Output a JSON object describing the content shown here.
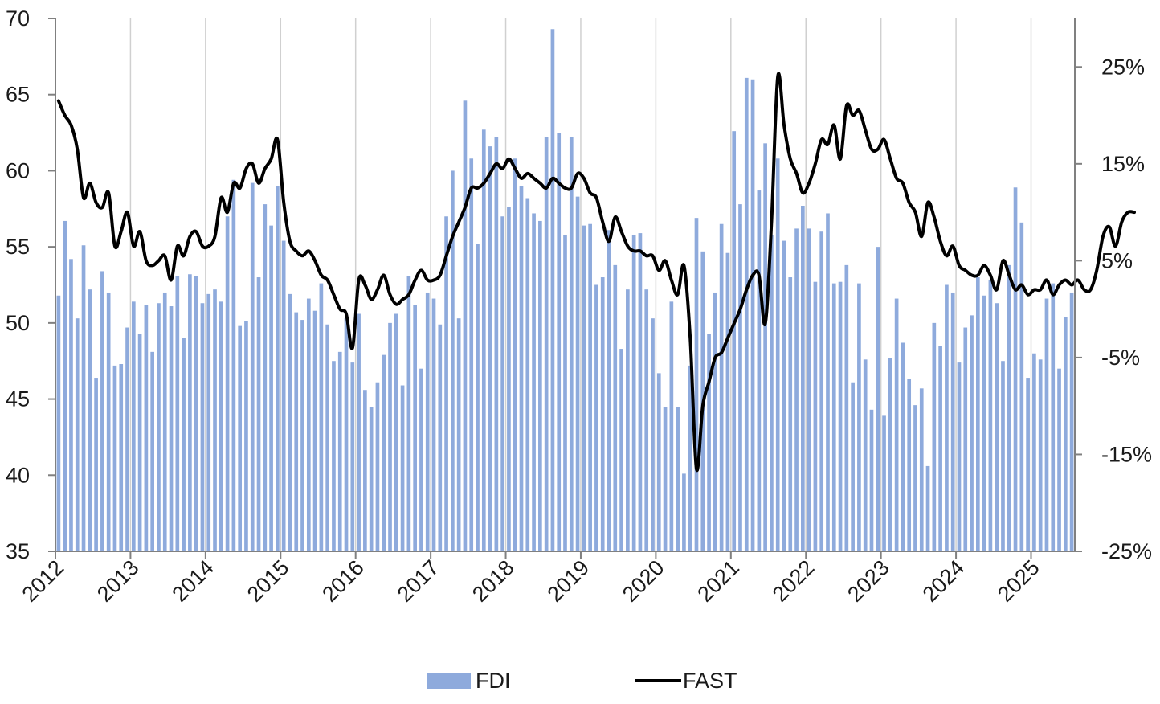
{
  "chart_data": {
    "type": "bar+line",
    "title": "",
    "xlabel": "",
    "ylabel_left": "",
    "ylabel_right": "",
    "colors": {
      "bar": "#8eaadc",
      "line": "#000000",
      "grid": "#d0d0d0",
      "axis": "#808080"
    },
    "legend_position": "bottom-center",
    "x_range": [
      "2012-01",
      "2025-07"
    ],
    "x_ticks": [
      "2012",
      "2013",
      "2014",
      "2015",
      "2016",
      "2017",
      "2018",
      "2019",
      "2020",
      "2021",
      "2022",
      "2023",
      "2024",
      "2025"
    ],
    "y_left": {
      "range": [
        35,
        70
      ],
      "ticks": [
        "35",
        "40",
        "45",
        "50",
        "55",
        "60",
        "65",
        "70"
      ]
    },
    "y_right": {
      "range": [
        -25,
        30
      ],
      "ticks": [
        "-25%",
        "-15%",
        "-5%",
        "5%",
        "15%",
        "25%"
      ]
    },
    "series": [
      {
        "name": "FDI",
        "type": "bar",
        "axis": "left",
        "start": "2012-01",
        "values": [
          51.8,
          56.7,
          54.2,
          50.3,
          55.1,
          52.2,
          46.4,
          53.4,
          52.0,
          47.2,
          47.3,
          49.7,
          51.4,
          49.3,
          51.2,
          48.1,
          51.3,
          52.0,
          51.1,
          53.1,
          49.0,
          53.2,
          53.1,
          51.3,
          51.9,
          52.2,
          51.4,
          57.0,
          59.4,
          49.8,
          50.1,
          59.2,
          53.0,
          57.8,
          56.4,
          59.0,
          55.4,
          51.9,
          50.7,
          50.2,
          51.6,
          50.8,
          52.6,
          49.9,
          47.5,
          48.1,
          50.3,
          47.4,
          50.6,
          45.6,
          44.5,
          46.1,
          47.9,
          50.0,
          50.6,
          45.9,
          53.1,
          51.2,
          47.0,
          52.0,
          51.6,
          49.9,
          57.0,
          60.0,
          50.3,
          64.6,
          60.8,
          55.2,
          62.7,
          61.6,
          62.2,
          57.0,
          57.6,
          60.8,
          59.0,
          58.2,
          57.2,
          56.7,
          62.2,
          69.3,
          62.5,
          55.8,
          62.2,
          58.3,
          56.4,
          56.5,
          52.5,
          53.0,
          56.1,
          53.8,
          48.3,
          52.2,
          55.8,
          55.9,
          52.2,
          50.3,
          46.7,
          44.5,
          51.4,
          44.5,
          40.1,
          47.2,
          56.9,
          54.7,
          49.3,
          52.0,
          56.5,
          54.6,
          62.6,
          57.8,
          66.1,
          66.0,
          58.7,
          61.8,
          55.8,
          60.8,
          55.4,
          53.0,
          56.2,
          57.7,
          56.2,
          52.7,
          56.0,
          57.2,
          52.6,
          52.7,
          53.8,
          46.1,
          52.6,
          47.6,
          44.3,
          55.0,
          43.9,
          47.7,
          51.6,
          48.7,
          46.3,
          44.6,
          45.7,
          40.6,
          50.0,
          48.5,
          52.5,
          52.0,
          47.4,
          49.7,
          50.5,
          53.0,
          51.8,
          52.8,
          51.3,
          47.5,
          53.8,
          58.9,
          56.6,
          46.4,
          48.0,
          47.6,
          51.6,
          52.6,
          47.0,
          50.4,
          52.0
        ]
      },
      {
        "name": "FAST",
        "type": "line",
        "axis": "right",
        "start": "2012-01",
        "values": [
          21.5,
          20.0,
          19.0,
          16.5,
          11.5,
          13.0,
          11.0,
          10.5,
          12.0,
          6.5,
          8.0,
          10.0,
          6.5,
          8.0,
          5.0,
          4.5,
          5.0,
          5.5,
          3.0,
          6.5,
          5.5,
          7.5,
          8.0,
          6.5,
          6.5,
          7.5,
          11.5,
          10.0,
          13.0,
          12.5,
          14.5,
          15.0,
          13.0,
          14.5,
          15.5,
          17.5,
          11.0,
          7.0,
          6.0,
          5.5,
          6.0,
          5.0,
          3.5,
          3.0,
          1.5,
          0.0,
          -0.5,
          -4.0,
          3.0,
          2.5,
          1.0,
          2.0,
          3.5,
          1.5,
          0.5,
          1.0,
          1.5,
          3.0,
          4.0,
          3.0,
          3.0,
          3.5,
          5.5,
          7.5,
          9.0,
          10.5,
          12.5,
          12.5,
          13.0,
          14.0,
          15.0,
          14.5,
          15.5,
          14.5,
          13.5,
          14.0,
          13.5,
          13.0,
          12.5,
          13.5,
          13.0,
          12.5,
          12.5,
          14.0,
          13.5,
          12.0,
          11.5,
          9.0,
          7.0,
          9.5,
          8.0,
          6.5,
          6.0,
          6.0,
          5.5,
          5.5,
          4.0,
          5.0,
          3.0,
          1.5,
          4.5,
          -3.0,
          -16.5,
          -10.0,
          -7.5,
          -5.0,
          -4.5,
          -3.0,
          -1.5,
          0.0,
          2.0,
          3.5,
          3.5,
          -1.5,
          9.0,
          24.0,
          19.0,
          15.5,
          14.0,
          12.0,
          13.0,
          15.0,
          17.5,
          17.0,
          19.0,
          15.5,
          21.0,
          20.0,
          20.5,
          18.5,
          16.5,
          16.5,
          17.5,
          15.5,
          13.5,
          13.0,
          11.0,
          10.0,
          7.5,
          11.0,
          9.5,
          7.0,
          5.5,
          6.5,
          4.5,
          4.0,
          3.5,
          3.5,
          4.5,
          3.5,
          2.0,
          5.0,
          3.5,
          2.0,
          2.5,
          1.5,
          2.0,
          2.0,
          3.0,
          1.5,
          2.5,
          3.0,
          2.5,
          3.0,
          2.0,
          2.0,
          4.0,
          7.5,
          8.5,
          6.5,
          9.0,
          10.0,
          10.0
        ]
      }
    ]
  }
}
